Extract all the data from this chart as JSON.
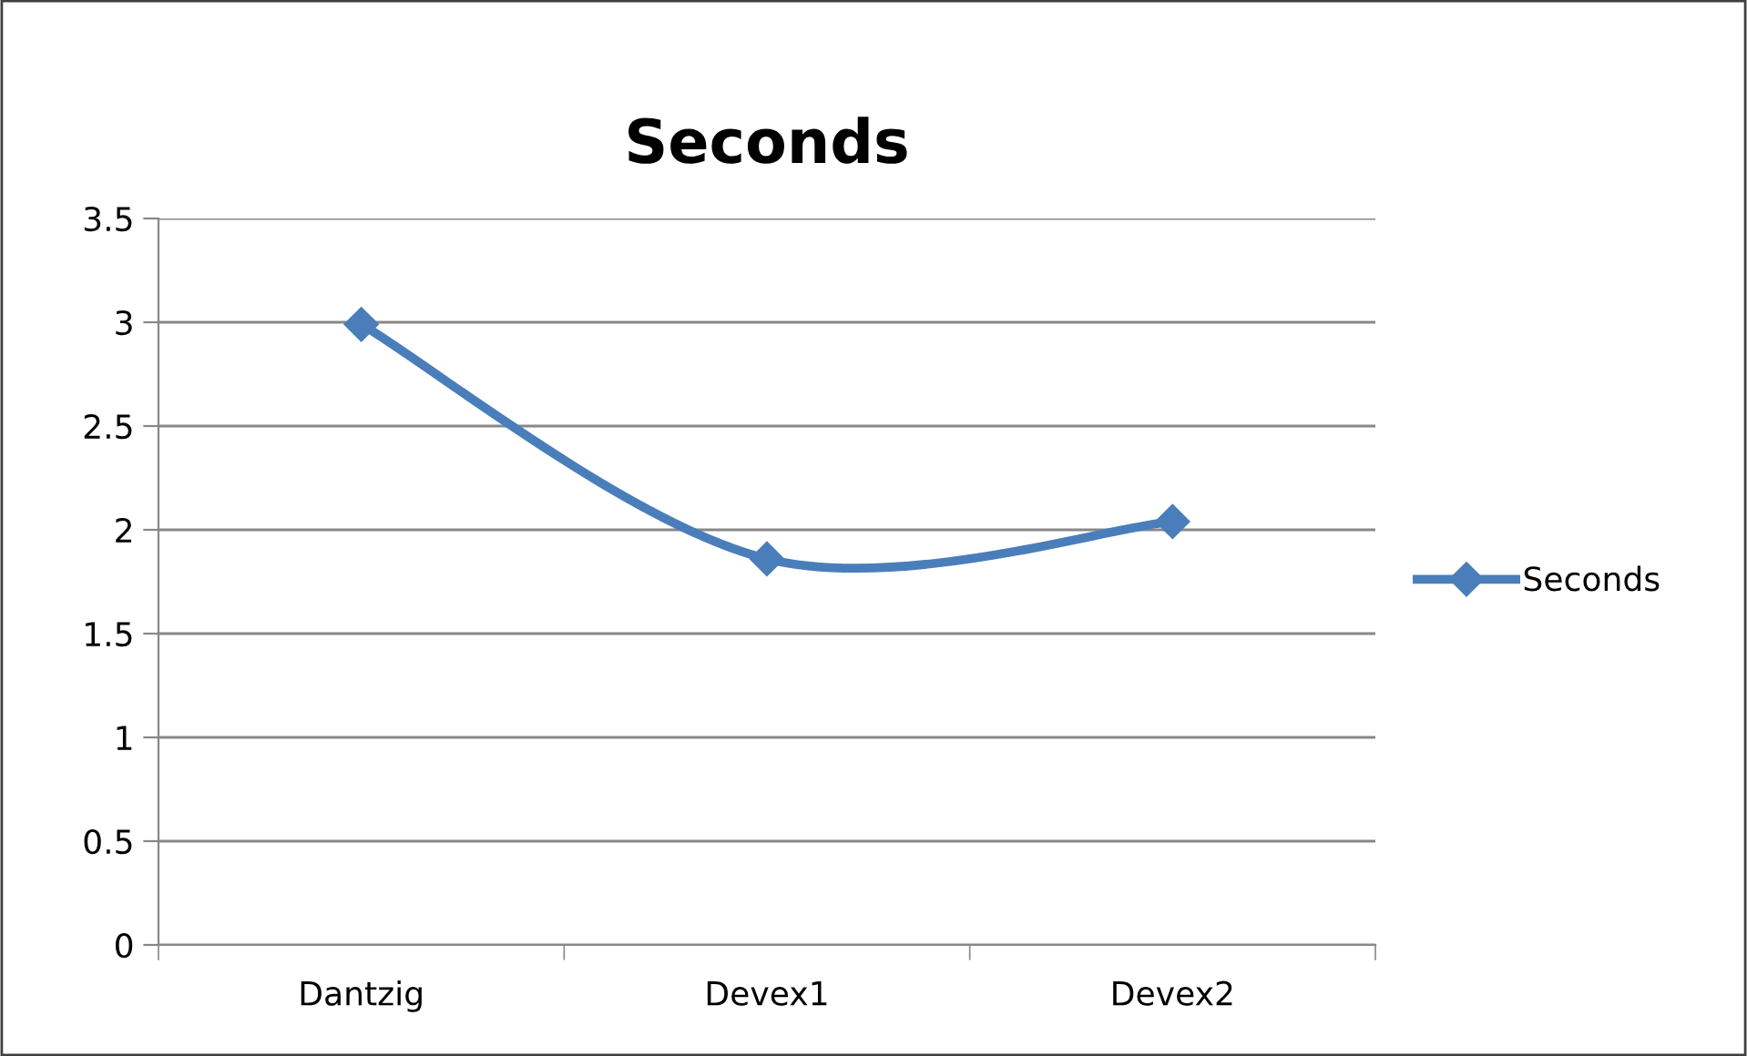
{
  "chart_data": {
    "type": "line",
    "title": "Seconds",
    "categories": [
      "Dantzig",
      "Devex1",
      "Devex2"
    ],
    "series": [
      {
        "name": "Seconds",
        "color": "#4a7ebb",
        "values": [
          2.99,
          1.86,
          2.04
        ]
      }
    ],
    "ylim": [
      0,
      3.5
    ],
    "yticks": [
      0,
      0.5,
      1,
      1.5,
      2,
      2.5,
      3,
      3.5
    ],
    "grid": "y",
    "legend": "right",
    "marker": "diamond",
    "line_style": "solid"
  }
}
